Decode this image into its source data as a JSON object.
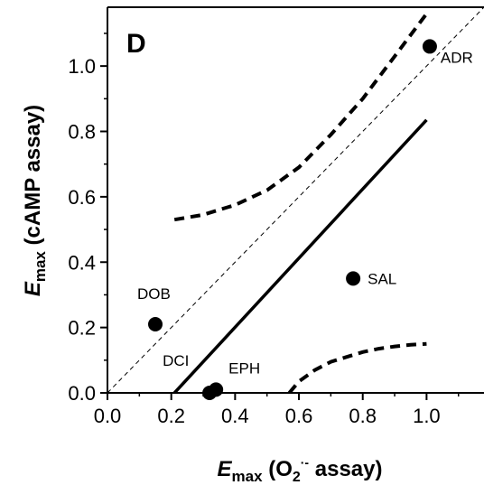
{
  "chart_data": {
    "type": "scatter",
    "panel_label": "D",
    "xlabel": {
      "main": "E",
      "sub": "max",
      "rest_open": " (O",
      "rest_sub": "2",
      "rest_sup": "·-",
      "rest_close": " assay)"
    },
    "ylabel": {
      "main": "E",
      "sub": "max",
      "rest": " (cAMP assay)"
    },
    "xlim": [
      0.0,
      1.18
    ],
    "ylim": [
      0.0,
      1.18
    ],
    "xticks": [
      0.0,
      0.2,
      0.4,
      0.6,
      0.8,
      1.0
    ],
    "yticks": [
      0.0,
      0.2,
      0.4,
      0.6,
      0.8,
      1.0
    ],
    "xtick_labels": [
      "0.0",
      "0.2",
      "0.4",
      "0.6",
      "0.8",
      "1.0"
    ],
    "ytick_labels": [
      "0.0",
      "0.2",
      "0.4",
      "0.6",
      "0.8",
      "1.0"
    ],
    "points": [
      {
        "label": "ADR",
        "x": 1.01,
        "y": 1.06,
        "label_pos": "below-right"
      },
      {
        "label": "SAL",
        "x": 0.77,
        "y": 0.35,
        "label_pos": "right"
      },
      {
        "label": "DOB",
        "x": 0.15,
        "y": 0.21,
        "label_pos": "above-left"
      },
      {
        "label": "EPH",
        "x": 0.34,
        "y": 0.01,
        "label_pos": "above-right"
      },
      {
        "label": "DCI",
        "x": 0.32,
        "y": 0.0,
        "label_pos": "above-left"
      }
    ],
    "identity_line": {
      "style": "thin-dashed",
      "x": [
        0.0,
        1.18
      ],
      "y": [
        0.0,
        1.18
      ]
    },
    "regression_line": {
      "style": "solid",
      "x": [
        0.21,
        1.0
      ],
      "y": [
        0.0,
        0.835
      ]
    },
    "confidence_upper": {
      "style": "thick-dashed",
      "x": [
        0.21,
        0.3,
        0.4,
        0.5,
        0.6,
        0.7,
        0.8,
        0.9,
        1.0
      ],
      "y": [
        0.53,
        0.545,
        0.575,
        0.62,
        0.69,
        0.79,
        0.9,
        1.03,
        1.16
      ]
    },
    "confidence_lower": {
      "style": "thick-dashed",
      "x": [
        0.57,
        0.6,
        0.65,
        0.7,
        0.75,
        0.8,
        0.85,
        0.9,
        0.95,
        1.0
      ],
      "y": [
        0.0,
        0.035,
        0.07,
        0.095,
        0.11,
        0.125,
        0.135,
        0.142,
        0.147,
        0.15
      ]
    },
    "grid": false,
    "legend": "none"
  }
}
